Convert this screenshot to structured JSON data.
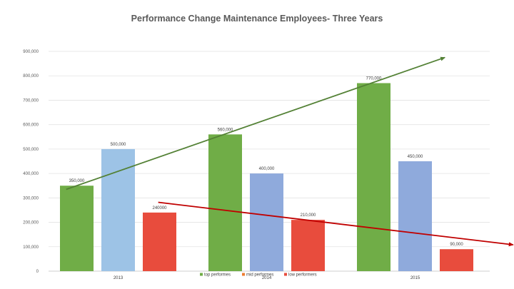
{
  "chart_data": {
    "type": "bar",
    "title": "Performance Change Maintenance Employees- Three Years",
    "xlabel": "",
    "ylabel": "",
    "categories": [
      "2013",
      "2014",
      "2015"
    ],
    "ylim": [
      0,
      900000
    ],
    "yticks": [
      "0",
      "100,000",
      "200,000",
      "300,000",
      "400,000",
      "500,000",
      "600,000",
      "700,000",
      "800,000",
      "900,000"
    ],
    "grid": true,
    "legend_position": "bottom",
    "series": [
      {
        "name": "top performes",
        "values": [
          350000,
          560000,
          770000
        ],
        "labels": [
          "350,000",
          "560,000",
          "770,000"
        ],
        "color": "#70ad47"
      },
      {
        "name": "mid performes",
        "values": [
          500000,
          400000,
          450000
        ],
        "labels": [
          "500,000",
          "400,000",
          "450,000"
        ],
        "color": "#9dc3e6",
        "bar_colors": [
          "#9dc3e6",
          "#8faadc",
          "#8faadc"
        ],
        "legend_color": "#ed7d31"
      },
      {
        "name": "low performers",
        "values": [
          240000,
          210000,
          90000
        ],
        "labels": [
          "240000",
          "210,000",
          "90,000"
        ],
        "color": "#e84c3d"
      }
    ],
    "trendlines": [
      {
        "color": "#538135",
        "from": [
          -0.35,
          335000
        ],
        "to": [
          2.2,
          875000
        ]
      },
      {
        "color": "#c00000",
        "from": [
          0.27,
          282000
        ],
        "to": [
          2.66,
          108000
        ]
      }
    ]
  }
}
